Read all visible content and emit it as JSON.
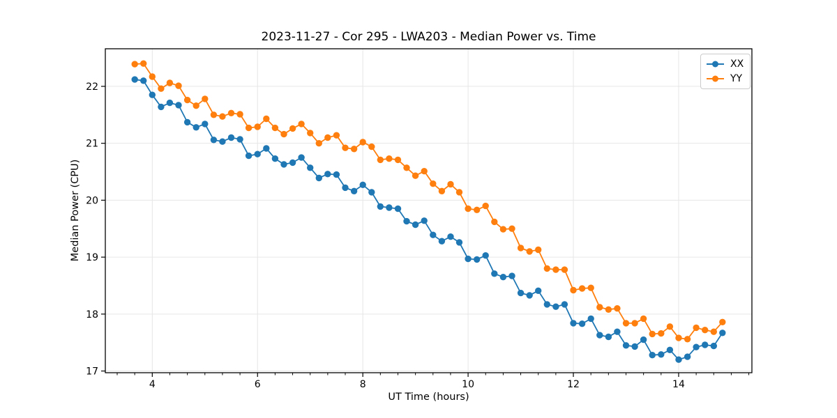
{
  "chart_data": {
    "type": "line",
    "title": "2023-11-27 - Cor 295 - LWA203 - Median Power vs. Time",
    "xlabel": "UT Time (hours)",
    "ylabel": "Median Power (CPU)",
    "xlim": [
      3.108,
      15.392
    ],
    "ylim": [
      16.97,
      22.66
    ],
    "x_major_ticks": [
      4,
      6,
      8,
      10,
      12,
      14
    ],
    "x_minor_tick_step": 0.33333,
    "y_major_ticks": [
      17,
      18,
      19,
      20,
      21,
      22
    ],
    "grid": true,
    "grid_color": "#e6e6e6",
    "spine_color": "#000000",
    "legend_position": "upper right",
    "x": [
      3.667,
      3.833,
      4.0,
      4.167,
      4.333,
      4.5,
      4.667,
      4.833,
      5.0,
      5.167,
      5.333,
      5.5,
      5.667,
      5.833,
      6.0,
      6.167,
      6.333,
      6.5,
      6.667,
      6.833,
      7.0,
      7.167,
      7.333,
      7.5,
      7.667,
      7.833,
      8.0,
      8.167,
      8.333,
      8.5,
      8.667,
      8.833,
      9.0,
      9.167,
      9.333,
      9.5,
      9.667,
      9.833,
      10.0,
      10.167,
      10.333,
      10.5,
      10.667,
      10.833,
      11.0,
      11.167,
      11.333,
      11.5,
      11.667,
      11.833,
      12.0,
      12.167,
      12.333,
      12.5,
      12.667,
      12.833,
      13.0,
      13.167,
      13.333,
      13.5,
      13.667,
      13.833,
      14.0,
      14.167,
      14.333,
      14.5,
      14.667,
      14.833
    ],
    "series": [
      {
        "name": "XX",
        "color": "#1f77b4",
        "values": [
          22.12,
          22.1,
          21.85,
          21.64,
          21.71,
          21.67,
          21.37,
          21.28,
          21.34,
          21.06,
          21.03,
          21.1,
          21.07,
          20.78,
          20.81,
          20.91,
          20.73,
          20.63,
          20.66,
          20.75,
          20.57,
          20.39,
          20.46,
          20.45,
          20.22,
          20.16,
          20.27,
          20.14,
          19.89,
          19.87,
          19.85,
          19.63,
          19.57,
          19.64,
          19.39,
          19.28,
          19.36,
          19.26,
          18.97,
          18.96,
          19.03,
          18.71,
          18.65,
          18.67,
          18.37,
          18.33,
          18.41,
          18.17,
          18.13,
          18.17,
          17.84,
          17.83,
          17.92,
          17.63,
          17.6,
          17.69,
          17.45,
          17.43,
          17.55,
          17.28,
          17.29,
          17.37,
          17.2,
          17.25,
          17.42,
          17.46,
          17.44,
          17.67
        ]
      },
      {
        "name": "YY",
        "color": "#ff7f0e",
        "values": [
          22.39,
          22.4,
          22.17,
          21.96,
          22.06,
          22.01,
          21.76,
          21.66,
          21.78,
          21.5,
          21.47,
          21.53,
          21.51,
          21.27,
          21.29,
          21.43,
          21.27,
          21.16,
          21.26,
          21.34,
          21.18,
          21.0,
          21.1,
          21.14,
          20.92,
          20.9,
          21.02,
          20.94,
          20.71,
          20.73,
          20.71,
          20.57,
          20.43,
          20.51,
          20.29,
          20.16,
          20.28,
          20.14,
          19.85,
          19.83,
          19.9,
          19.62,
          19.49,
          19.5,
          19.16,
          19.1,
          19.13,
          18.8,
          18.78,
          18.78,
          18.42,
          18.45,
          18.46,
          18.12,
          18.08,
          18.1,
          17.84,
          17.84,
          17.92,
          17.65,
          17.66,
          17.78,
          17.58,
          17.56,
          17.76,
          17.72,
          17.69,
          17.86
        ]
      }
    ]
  }
}
